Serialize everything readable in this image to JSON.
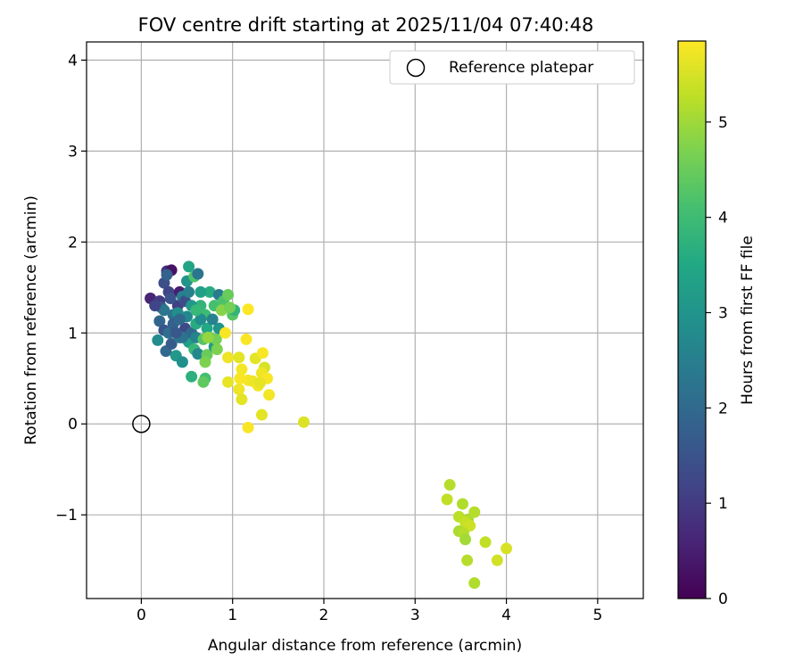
{
  "chart_data": {
    "type": "scatter",
    "title": "FOV centre drift starting at 2025/11/04 07:40:48",
    "xlabel": "Angular distance from reference (arcmin)",
    "ylabel": "Rotation from reference (arcmin)",
    "xlim": [
      -0.6,
      5.5
    ],
    "ylim": [
      -1.92,
      4.2
    ],
    "x_ticks": [
      0,
      1,
      2,
      3,
      4,
      5
    ],
    "y_ticks": [
      -1,
      0,
      1,
      2,
      3,
      4
    ],
    "grid": true,
    "legend": {
      "position": "top-right",
      "entries": [
        "Reference platepar"
      ]
    },
    "reference_point": {
      "x": 0,
      "y": 0
    },
    "colorbar": {
      "label": "Hours from first FF file",
      "range": [
        0,
        5.85
      ],
      "ticks": [
        0,
        1,
        2,
        3,
        4,
        5
      ],
      "colormap": "viridis"
    },
    "points": [
      [
        0.1,
        1.38,
        0.6
      ],
      [
        0.2,
        1.35,
        1.0
      ],
      [
        0.25,
        1.55,
        1.4
      ],
      [
        0.28,
        1.68,
        0.8
      ],
      [
        0.33,
        1.69,
        0.3
      ],
      [
        0.28,
        1.64,
        1.8
      ],
      [
        0.3,
        1.45,
        1.2
      ],
      [
        0.22,
        1.28,
        1.6
      ],
      [
        0.2,
        1.13,
        1.9
      ],
      [
        0.25,
        1.03,
        1.5
      ],
      [
        0.27,
        0.8,
        2.0
      ],
      [
        0.33,
        0.88,
        1.7
      ],
      [
        0.18,
        0.92,
        2.8
      ],
      [
        0.35,
        1.2,
        2.2
      ],
      [
        0.4,
        1.3,
        1.1
      ],
      [
        0.42,
        1.45,
        0.5
      ],
      [
        0.45,
        1.4,
        2.5
      ],
      [
        0.5,
        1.18,
        2.7
      ],
      [
        0.48,
        1.05,
        1.3
      ],
      [
        0.42,
        0.95,
        2.4
      ],
      [
        0.38,
        0.75,
        3.1
      ],
      [
        0.45,
        0.68,
        2.9
      ],
      [
        0.52,
        0.9,
        3.3
      ],
      [
        0.55,
        1.0,
        2.0
      ],
      [
        0.6,
        1.1,
        3.6
      ],
      [
        0.5,
        1.57,
        3.0
      ],
      [
        0.52,
        1.73,
        3.4
      ],
      [
        0.58,
        1.62,
        4.2
      ],
      [
        0.62,
        1.65,
        2.3
      ],
      [
        0.65,
        1.3,
        3.8
      ],
      [
        0.7,
        1.2,
        4.0
      ],
      [
        0.72,
        1.05,
        3.5
      ],
      [
        0.6,
        0.95,
        2.6
      ],
      [
        0.58,
        0.82,
        3.9
      ],
      [
        0.55,
        0.52,
        3.7
      ],
      [
        0.62,
        0.77,
        2.7
      ],
      [
        0.68,
        0.93,
        4.3
      ],
      [
        0.72,
        0.76,
        4.5
      ],
      [
        0.7,
        0.68,
        4.7
      ],
      [
        0.75,
        0.95,
        4.4
      ],
      [
        0.8,
        0.85,
        3.2
      ],
      [
        0.82,
        0.93,
        4.6
      ],
      [
        0.85,
        1.05,
        3.0
      ],
      [
        0.78,
        1.15,
        2.6
      ],
      [
        0.8,
        1.3,
        4.1
      ],
      [
        0.75,
        1.45,
        3.6
      ],
      [
        0.65,
        1.45,
        3.3
      ],
      [
        0.85,
        1.42,
        2.4
      ],
      [
        0.9,
        1.35,
        4.2
      ],
      [
        0.95,
        1.42,
        4.5
      ],
      [
        0.88,
        1.25,
        4.8
      ],
      [
        1.0,
        1.2,
        4.3
      ],
      [
        1.02,
        1.25,
        3.8
      ],
      [
        0.97,
        1.28,
        4.6
      ],
      [
        0.3,
        1.0,
        2.1
      ],
      [
        0.35,
        1.1,
        1.8
      ],
      [
        0.4,
        1.22,
        2.9
      ],
      [
        0.32,
        1.38,
        1.5
      ],
      [
        0.25,
        1.25,
        2.3
      ],
      [
        0.45,
        0.95,
        2.2
      ],
      [
        0.48,
        1.35,
        1.4
      ],
      [
        0.55,
        1.3,
        3.1
      ],
      [
        0.65,
        1.15,
        2.8
      ],
      [
        0.7,
        0.5,
        4.1
      ],
      [
        0.68,
        0.46,
        4.4
      ],
      [
        0.15,
        1.3,
        1.2
      ],
      [
        0.38,
        1.0,
        1.6
      ],
      [
        0.42,
        1.15,
        2.0
      ],
      [
        0.52,
        1.45,
        2.5
      ],
      [
        0.6,
        1.25,
        3.9
      ],
      [
        0.73,
        0.95,
        4.9
      ],
      [
        0.83,
        0.82,
        4.7
      ],
      [
        0.92,
        1.0,
        5.8
      ],
      [
        1.17,
        1.26,
        5.85
      ],
      [
        1.15,
        0.93,
        5.8
      ],
      [
        0.95,
        0.73,
        5.7
      ],
      [
        1.07,
        0.73,
        5.6
      ],
      [
        1.1,
        0.6,
        5.75
      ],
      [
        1.08,
        0.5,
        5.8
      ],
      [
        0.95,
        0.46,
        5.65
      ],
      [
        1.07,
        0.38,
        5.7
      ],
      [
        1.1,
        0.27,
        5.6
      ],
      [
        1.17,
        0.48,
        5.8
      ],
      [
        1.22,
        0.47,
        5.7
      ],
      [
        1.28,
        0.42,
        5.75
      ],
      [
        1.25,
        0.72,
        5.6
      ],
      [
        1.33,
        0.78,
        5.8
      ],
      [
        1.35,
        0.62,
        5.5
      ],
      [
        1.32,
        0.56,
        5.7
      ],
      [
        1.38,
        0.5,
        5.8
      ],
      [
        1.3,
        0.45,
        5.65
      ],
      [
        1.4,
        0.32,
        5.75
      ],
      [
        1.32,
        0.1,
        5.6
      ],
      [
        1.17,
        -0.04,
        5.8
      ],
      [
        1.78,
        0.02,
        5.55
      ],
      [
        3.38,
        -0.67,
        5.2
      ],
      [
        3.35,
        -0.83,
        5.3
      ],
      [
        3.52,
        -0.88,
        5.15
      ],
      [
        3.48,
        -1.02,
        5.25
      ],
      [
        3.58,
        -1.05,
        5.1
      ],
      [
        3.65,
        -0.97,
        5.2
      ],
      [
        3.55,
        -1.08,
        5.35
      ],
      [
        3.6,
        -1.12,
        5.4
      ],
      [
        3.48,
        -1.18,
        5.1
      ],
      [
        3.53,
        -1.2,
        5.2
      ],
      [
        3.55,
        -1.27,
        5.05
      ],
      [
        3.77,
        -1.3,
        5.3
      ],
      [
        3.57,
        -1.5,
        5.2
      ],
      [
        3.9,
        -1.5,
        5.45
      ],
      [
        4.0,
        -1.37,
        5.5
      ],
      [
        3.65,
        -1.75,
        5.15
      ]
    ]
  }
}
